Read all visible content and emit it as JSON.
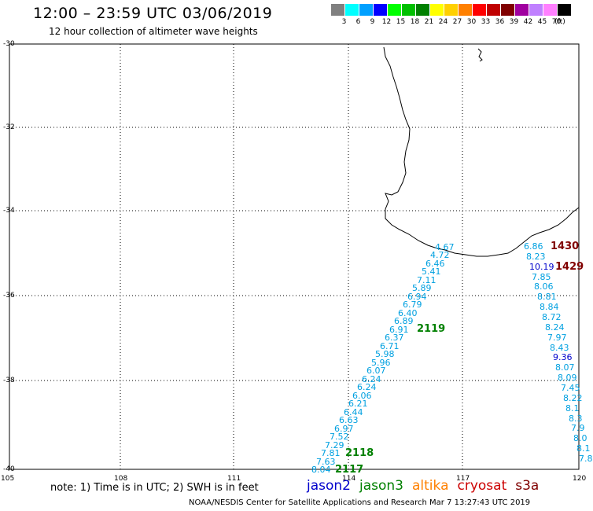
{
  "title": "12:00 – 23:59 UTC 03/06/2019",
  "subtitle": "12 hour collection of altimeter wave heights",
  "scale": {
    "unit": "(ft)",
    "items": [
      {
        "color": "#808080",
        "label": "3"
      },
      {
        "color": "#00ffff",
        "label": "6"
      },
      {
        "color": "#00a0ff",
        "label": "9"
      },
      {
        "color": "#0000ff",
        "label": "12"
      },
      {
        "color": "#00ff00",
        "label": "15"
      },
      {
        "color": "#00c000",
        "label": "18"
      },
      {
        "color": "#008000",
        "label": "21"
      },
      {
        "color": "#ffff00",
        "label": "24"
      },
      {
        "color": "#ffd000",
        "label": "27"
      },
      {
        "color": "#ff8000",
        "label": "30"
      },
      {
        "color": "#ff0000",
        "label": "33"
      },
      {
        "color": "#c00000",
        "label": "36"
      },
      {
        "color": "#800000",
        "label": "39"
      },
      {
        "color": "#a000a0",
        "label": "42"
      },
      {
        "color": "#c080ff",
        "label": "45"
      },
      {
        "color": "#ff80ff",
        "label": "70"
      },
      {
        "color": "#000000",
        "label": ""
      }
    ]
  },
  "map": {
    "lat_labels": [
      "-30",
      "-32",
      "-34",
      "-36",
      "-38",
      "-40"
    ],
    "lon_labels": [
      "105",
      "108",
      "111",
      "114",
      "117",
      "120"
    ]
  },
  "tracks": {
    "west": [
      "4.67",
      "4.72",
      "6.46",
      "5.41",
      "7.11",
      "5.89",
      "6.94",
      "6.79",
      "6.40",
      "6.89",
      "6.91",
      "6.37",
      "6.71",
      "5.98",
      "5.96",
      "6.07",
      "6.24",
      "6.24",
      "6.06",
      "6.21",
      "6.44",
      "6.63",
      "6.97",
      "7.52",
      "7.29",
      "7.81",
      "7.63",
      "8.04"
    ],
    "east": [
      "6.86",
      "8.23",
      "10.19",
      "7.85",
      "8.06",
      "8.81",
      "8.84",
      "8.72",
      "8.24",
      "7.97",
      "8.43",
      "9.36",
      "8.07",
      "8.09",
      "7.45",
      "8.22",
      "8.1",
      "8.3",
      "7.9",
      "8.0",
      "8.1",
      "7.8"
    ]
  },
  "pass_labels": [
    {
      "text": "2119",
      "color": "#008000"
    },
    {
      "text": "2118",
      "color": "#008000"
    },
    {
      "text": "2117",
      "color": "#008000"
    },
    {
      "text": "1430",
      "color": "#800000"
    },
    {
      "text": "1429",
      "color": "#800000"
    }
  ],
  "note": "note: 1) Time is in UTC; 2) SWH is in feet",
  "satellites": [
    {
      "name": "jason2",
      "color": "#0000cc"
    },
    {
      "name": "jason3",
      "color": "#008000"
    },
    {
      "name": "altika",
      "color": "#ff8000"
    },
    {
      "name": "cryosat",
      "color": "#cc0000"
    },
    {
      "name": "s3a",
      "color": "#800000"
    }
  ],
  "credit": "NOAA/NESDIS Center for Satellite Applications and Research   Mar  7 13:27:43 UTC 2019"
}
